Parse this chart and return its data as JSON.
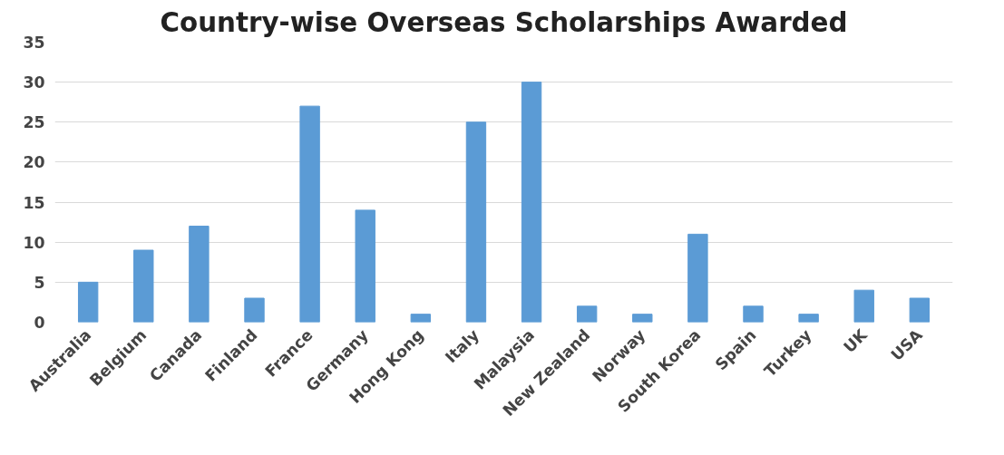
{
  "chart_data": {
    "type": "bar",
    "title": "Country-wise Overseas Scholarships Awarded",
    "categories": [
      "Australia",
      "Belgium",
      "Canada",
      "Finland",
      "France",
      "Germany",
      "Hong Kong",
      "Italy",
      "Malaysia",
      "New Zealand",
      "Norway",
      "South Korea",
      "Spain",
      "Turkey",
      "UK",
      "USA"
    ],
    "values": [
      5,
      9,
      12,
      3,
      27,
      14,
      1,
      25,
      30,
      2,
      1,
      11,
      2,
      1,
      4,
      3
    ],
    "color": "#5b9bd5",
    "ylim": [
      0,
      35
    ],
    "yticks": [
      0,
      5,
      10,
      15,
      20,
      25,
      30,
      35
    ],
    "grid": "y"
  }
}
